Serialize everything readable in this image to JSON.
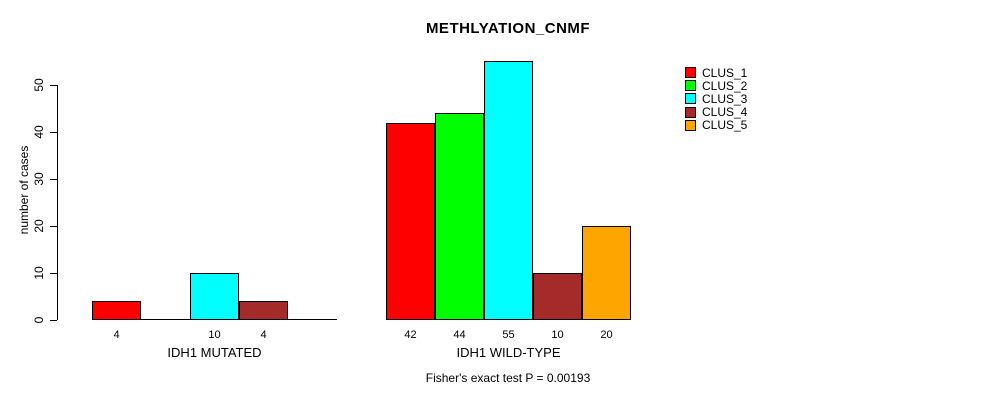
{
  "title": "METHLYATION_CNMF",
  "footer": "Fisher's exact test P = 0.00193",
  "y_axis": {
    "label": "number of cases",
    "ticks": [
      0,
      10,
      20,
      30,
      40,
      50
    ]
  },
  "legend": {
    "position": "right",
    "entries": [
      "CLUS_1",
      "CLUS_2",
      "CLUS_3",
      "CLUS_4",
      "CLUS_5"
    ]
  },
  "colors": {
    "clus_1": "#ff0000",
    "clus_2": "#00ff00",
    "clus_3": "#00ffff",
    "clus_4": "#a52a2a",
    "clus_5": "#ffa500",
    "axis": "#000000",
    "background": "#ffffff"
  },
  "chart_data": {
    "type": "bar",
    "grouped": true,
    "title": "METHLYATION_CNMF",
    "xlabel": "",
    "ylabel": "number of cases",
    "categories": [
      "IDH1 MUTATED",
      "IDH1 WILD-TYPE"
    ],
    "series": [
      {
        "name": "CLUS_1",
        "color": "#ff0000",
        "values": [
          4,
          42
        ]
      },
      {
        "name": "CLUS_2",
        "color": "#00ff00",
        "values": [
          0,
          44
        ]
      },
      {
        "name": "CLUS_3",
        "color": "#00ffff",
        "values": [
          10,
          55
        ]
      },
      {
        "name": "CLUS_4",
        "color": "#a52a2a",
        "values": [
          4,
          10
        ]
      },
      {
        "name": "CLUS_5",
        "color": "#ffa500",
        "values": [
          0,
          20
        ]
      }
    ],
    "bar_value_labels_shown": true,
    "zero_bars_unlabeled": true,
    "yticks": [
      0,
      10,
      20,
      30,
      40,
      50
    ],
    "ylim": [
      0,
      55
    ],
    "grid": false,
    "legend_position": "right",
    "annotation": "Fisher's exact test P = 0.00193"
  }
}
